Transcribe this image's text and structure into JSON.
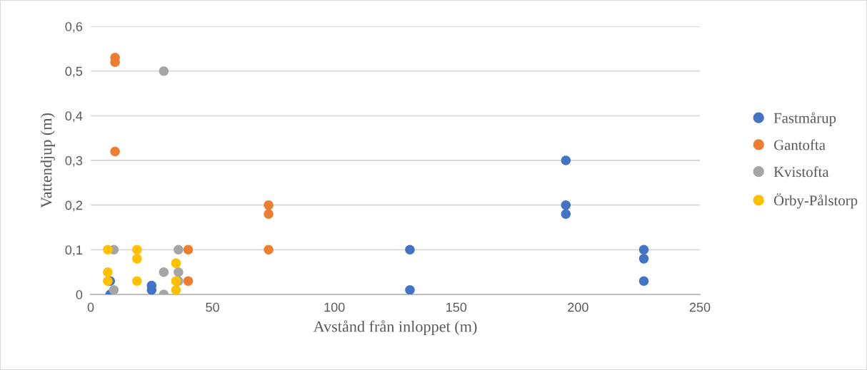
{
  "chart_data": {
    "type": "scatter",
    "xlabel": "Avstånd från inloppet (m)",
    "ylabel": "Vattendjup (m)",
    "xlim": [
      0,
      250
    ],
    "xticks": [
      0,
      50,
      100,
      150,
      200,
      250
    ],
    "ylim": [
      0,
      0.6
    ],
    "yticks": [
      {
        "value": 0,
        "label": "0"
      },
      {
        "value": 0.1,
        "label": "0,1"
      },
      {
        "value": 0.2,
        "label": "0,2"
      },
      {
        "value": 0.3,
        "label": "0,3"
      },
      {
        "value": 0.4,
        "label": "0,4"
      },
      {
        "value": 0.5,
        "label": "0,5"
      },
      {
        "value": 0.6,
        "label": "0,6"
      }
    ],
    "grid": "y",
    "legend": "right",
    "marker": "circle",
    "series": [
      {
        "name": "Fastmårup",
        "color": "#4472c4",
        "x": [
          8,
          8,
          25,
          25,
          131,
          131,
          195,
          195,
          195,
          227,
          227,
          227
        ],
        "values": [
          0.03,
          0.0,
          0.02,
          0.01,
          0.1,
          0.01,
          0.3,
          0.2,
          0.18,
          0.1,
          0.08,
          0.03
        ]
      },
      {
        "name": "Gantofta",
        "color": "#ed7d31",
        "x": [
          10,
          10,
          10,
          40,
          40,
          73,
          73,
          73
        ],
        "values": [
          0.53,
          0.52,
          0.32,
          0.1,
          0.03,
          0.2,
          0.18,
          0.1
        ]
      },
      {
        "name": "Kvistofta",
        "color": "#a5a5a5",
        "x": [
          9.5,
          9.5,
          30,
          30,
          30,
          36,
          36,
          36
        ],
        "values": [
          0.1,
          0.01,
          0.5,
          0.05,
          0.0,
          0.1,
          0.05,
          0.03
        ]
      },
      {
        "name": "Örby-Pålstorp",
        "color": "#ffc000",
        "x": [
          7,
          7,
          7,
          19,
          19,
          19,
          35,
          35,
          35
        ],
        "values": [
          0.1,
          0.05,
          0.03,
          0.1,
          0.08,
          0.03,
          0.07,
          0.03,
          0.01
        ]
      }
    ]
  }
}
